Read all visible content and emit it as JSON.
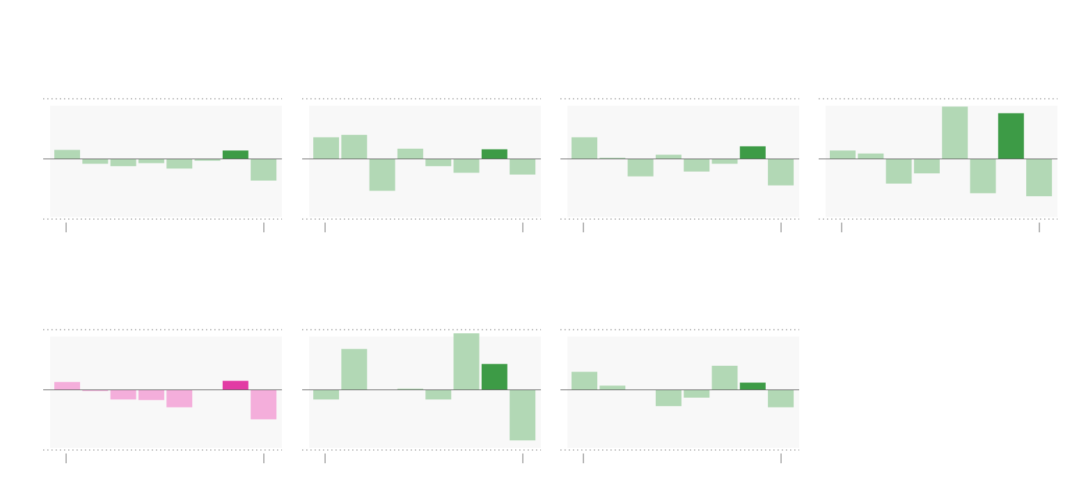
{
  "chart_data": [
    {
      "type": "bar",
      "values": [
        15,
        -8,
        -12,
        -7,
        -16,
        -3,
        14,
        -36
      ],
      "color": "#b2d8b5",
      "highlight": 6,
      "highlight_color": "#3d9b46",
      "ylim": [
        -100,
        100
      ]
    },
    {
      "type": "bar",
      "values": [
        36,
        40,
        -53,
        17,
        -12,
        -23,
        16,
        -26
      ],
      "color": "#b2d8b5",
      "highlight": 6,
      "highlight_color": "#3d9b46",
      "ylim": [
        -100,
        100
      ]
    },
    {
      "type": "bar",
      "values": [
        36,
        2,
        -29,
        7,
        -21,
        -8,
        21,
        -44
      ],
      "color": "#b2d8b5",
      "highlight": 6,
      "highlight_color": "#3d9b46",
      "ylim": [
        -100,
        100
      ]
    },
    {
      "type": "bar",
      "values": [
        14,
        9,
        -41,
        -24,
        87,
        -57,
        76,
        -62
      ],
      "color": "#b2d8b5",
      "highlight": 6,
      "highlight_color": "#3d9b46",
      "ylim": [
        -100,
        100
      ]
    },
    {
      "type": "bar",
      "values": [
        13,
        -2,
        -16,
        -17,
        -29,
        0,
        15,
        -49
      ],
      "color": "#f4aedb",
      "highlight": 6,
      "highlight_color": "#e23ba4",
      "ylim": [
        -100,
        100
      ]
    },
    {
      "type": "bar",
      "values": [
        -16,
        68,
        0,
        2,
        -16,
        94,
        43,
        -84
      ],
      "color": "#b2d8b5",
      "highlight": 6,
      "highlight_color": "#3d9b46",
      "ylim": [
        -100,
        100
      ]
    },
    {
      "type": "bar",
      "values": [
        30,
        7,
        0,
        -27,
        -13,
        40,
        12,
        -29
      ],
      "color": "#b2d8b5",
      "highlight": 6,
      "highlight_color": "#3d9b46",
      "ylim": [
        -100,
        100
      ]
    }
  ]
}
